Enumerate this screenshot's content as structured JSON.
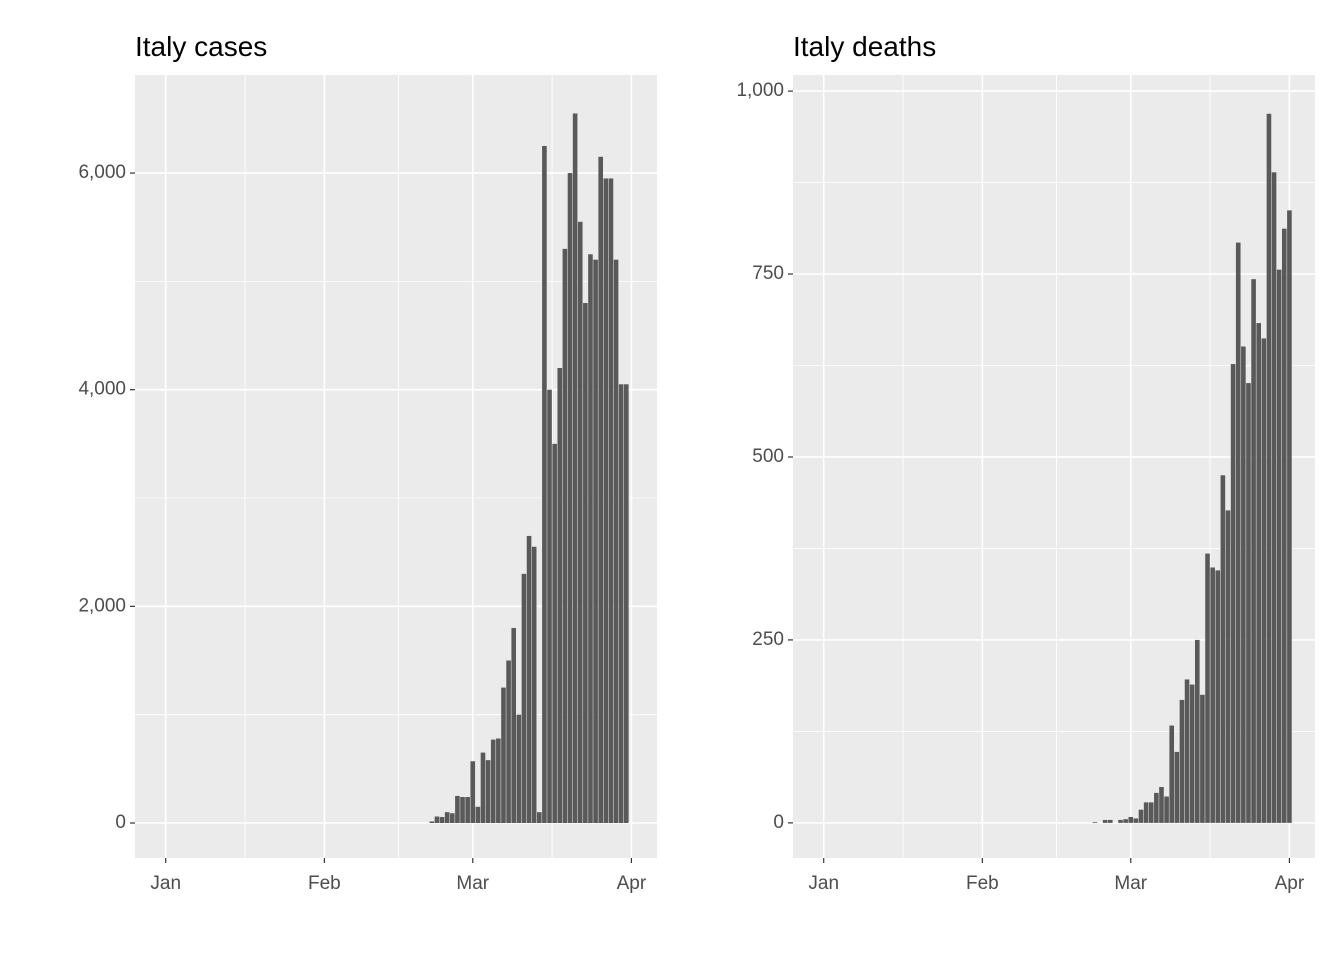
{
  "chart_data": [
    {
      "type": "bar",
      "title": "Italy cases",
      "color": "#595959",
      "grid": true,
      "x": [
        52,
        53,
        54,
        55,
        56,
        57,
        58,
        59,
        60,
        61,
        62,
        63,
        64,
        65,
        66,
        67,
        68,
        69,
        70,
        71,
        72,
        73,
        74,
        75,
        76,
        77,
        78,
        79,
        80,
        81,
        82,
        83,
        84,
        85,
        86,
        87,
        88,
        89,
        90
      ],
      "values": [
        14,
        60,
        55,
        100,
        90,
        250,
        240,
        240,
        570,
        150,
        650,
        580,
        770,
        780,
        1250,
        1500,
        1800,
        1000,
        2300,
        2650,
        2550,
        100,
        6250,
        4000,
        3500,
        4200,
        5300,
        6000,
        6550,
        5550,
        4800,
        5250,
        5200,
        6150,
        5950,
        5950,
        5200,
        4050,
        4050
      ],
      "xlim": [
        -6,
        96
      ],
      "xticks": [
        {
          "value": 0,
          "label": "Jan"
        },
        {
          "value": 31,
          "label": "Feb"
        },
        {
          "value": 60,
          "label": "Mar"
        },
        {
          "value": 91,
          "label": "Apr"
        }
      ],
      "minor_xticks": [
        15.5,
        45.5,
        75.5
      ],
      "ylim": [
        -323,
        6905
      ],
      "yticks": [
        0,
        {
          "value": 2000,
          "label": "2,000"
        },
        {
          "value": 4000,
          "label": "4,000"
        },
        {
          "value": 6000,
          "label": "6,000"
        }
      ],
      "minor_yticks": [
        1000,
        3000,
        5000
      ]
    },
    {
      "type": "bar",
      "title": "Italy deaths",
      "color": "#595959",
      "grid": true,
      "x": [
        53,
        54,
        55,
        56,
        57,
        58,
        59,
        60,
        61,
        62,
        63,
        64,
        65,
        66,
        67,
        68,
        69,
        70,
        71,
        72,
        73,
        74,
        75,
        76,
        77,
        78,
        79,
        80,
        81,
        82,
        83,
        84,
        85,
        86,
        87,
        88,
        89,
        90,
        91
      ],
      "values": [
        1,
        0,
        4,
        4,
        0,
        4,
        5,
        8,
        6,
        18,
        28,
        28,
        41,
        49,
        36,
        133,
        97,
        168,
        196,
        189,
        250,
        175,
        368,
        349,
        345,
        475,
        427,
        627,
        793,
        651,
        601,
        743,
        683,
        662,
        969,
        889,
        756,
        812,
        837
      ],
      "xlim": [
        -6,
        96
      ],
      "xticks": [
        {
          "value": 0,
          "label": "Jan"
        },
        {
          "value": 31,
          "label": "Feb"
        },
        {
          "value": 60,
          "label": "Mar"
        },
        {
          "value": 91,
          "label": "Apr"
        }
      ],
      "minor_xticks": [
        15.5,
        45.5,
        75.5
      ],
      "ylim": [
        -48,
        1022
      ],
      "yticks": [
        0,
        250,
        500,
        750,
        {
          "value": 1000,
          "label": "1,000"
        }
      ],
      "minor_yticks": [
        125,
        375,
        625,
        875
      ]
    }
  ]
}
